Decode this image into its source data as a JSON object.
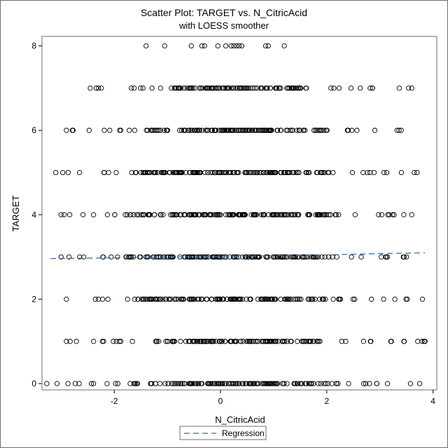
{
  "chart_data": {
    "type": "scatter",
    "title": "Scatter Plot: TARGET vs. N_CitricAcid",
    "subtitle": "with LOESS smoother",
    "xlabel": "N_CitricAcid",
    "ylabel": "TARGET",
    "xlim": [
      -3.2,
      4.0
    ],
    "ylim": [
      -0.2,
      8.2
    ],
    "x_ticks": [
      "-2",
      "0",
      "2",
      "4"
    ],
    "y_ticks": [
      "0",
      "2",
      "4",
      "6",
      "8"
    ],
    "grid": false,
    "legend_position": "bottom-center",
    "series": [
      {
        "name": "TARGET",
        "marker": "open-circle",
        "color": "#000000",
        "bands": [
          {
            "y": 0,
            "xmin": -3.27,
            "xmax": 3.75,
            "dense_min": -1.65,
            "dense_max": 2.2
          },
          {
            "y": 1,
            "xmin": -2.9,
            "xmax": 3.85,
            "dense_min": -1.3,
            "dense_max": 1.9
          },
          {
            "y": 2,
            "xmin": -2.9,
            "xmax": 3.8,
            "dense_min": -1.5,
            "dense_max": 2.0
          },
          {
            "y": 3,
            "xmin": -3.0,
            "xmax": 3.5,
            "dense_min": -1.8,
            "dense_max": 2.2
          },
          {
            "y": 4,
            "xmin": -3.0,
            "xmax": 3.6,
            "dense_min": -1.8,
            "dense_max": 2.3
          },
          {
            "y": 5,
            "xmin": -3.1,
            "xmax": 3.7,
            "dense_min": -1.5,
            "dense_max": 2.2
          },
          {
            "y": 6,
            "xmin": -2.9,
            "xmax": 3.4,
            "dense_min": -1.4,
            "dense_max": 2.1
          },
          {
            "y": 7,
            "xmin": -2.45,
            "xmax": 3.6,
            "dense_min": -1.0,
            "dense_max": 1.6
          }
        ],
        "sparse_points": [
          [
            -0.35,
            8
          ],
          [
            -0.3,
            8
          ],
          [
            -0.05,
            8
          ],
          [
            0.1,
            8
          ],
          [
            0.2,
            8
          ],
          [
            0.25,
            8
          ],
          [
            0.3,
            8
          ],
          [
            0.35,
            8
          ],
          [
            0.4,
            8
          ],
          [
            0.85,
            8
          ],
          [
            0.9,
            8
          ],
          [
            1.2,
            8
          ],
          [
            -1.05,
            8
          ],
          [
            -1.4,
            8
          ],
          [
            -0.55,
            8
          ]
        ]
      },
      {
        "name": "Regression",
        "type": "line",
        "style": "dashed",
        "color": "#3a6ea5",
        "x": [
          -3.2,
          -2,
          -1,
          0,
          1,
          2,
          3,
          3.85
        ],
        "y": [
          2.96,
          2.98,
          3.0,
          3.01,
          3.03,
          3.05,
          3.08,
          3.1
        ]
      }
    ]
  }
}
